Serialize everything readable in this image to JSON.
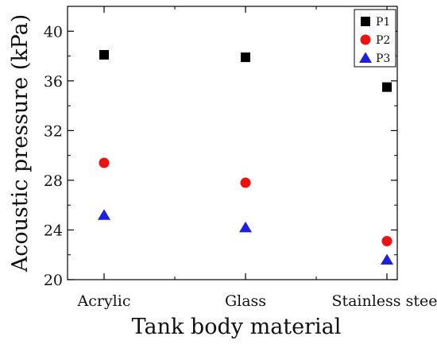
{
  "chart_data": {
    "type": "scatter",
    "xlabel": "Tank body material",
    "ylabel": "Acoustic pressure (kPa)",
    "categories": [
      "Acrylic",
      "Glass",
      "Stainless steel"
    ],
    "ylim": [
      20,
      42
    ],
    "yticks": [
      "20",
      "24",
      "28",
      "32",
      "36",
      "40"
    ],
    "grid": false,
    "legend_position": "top-right",
    "series": [
      {
        "name": "P1",
        "marker": "square",
        "color": "#000000",
        "values": [
          38.1,
          37.9,
          35.5
        ]
      },
      {
        "name": "P2",
        "marker": "circle",
        "color": "#ee1111",
        "values": [
          29.4,
          27.8,
          23.1
        ]
      },
      {
        "name": "P3",
        "marker": "triangle",
        "color": "#1f1fe0",
        "values": [
          25.2,
          24.2,
          21.6
        ]
      }
    ]
  }
}
